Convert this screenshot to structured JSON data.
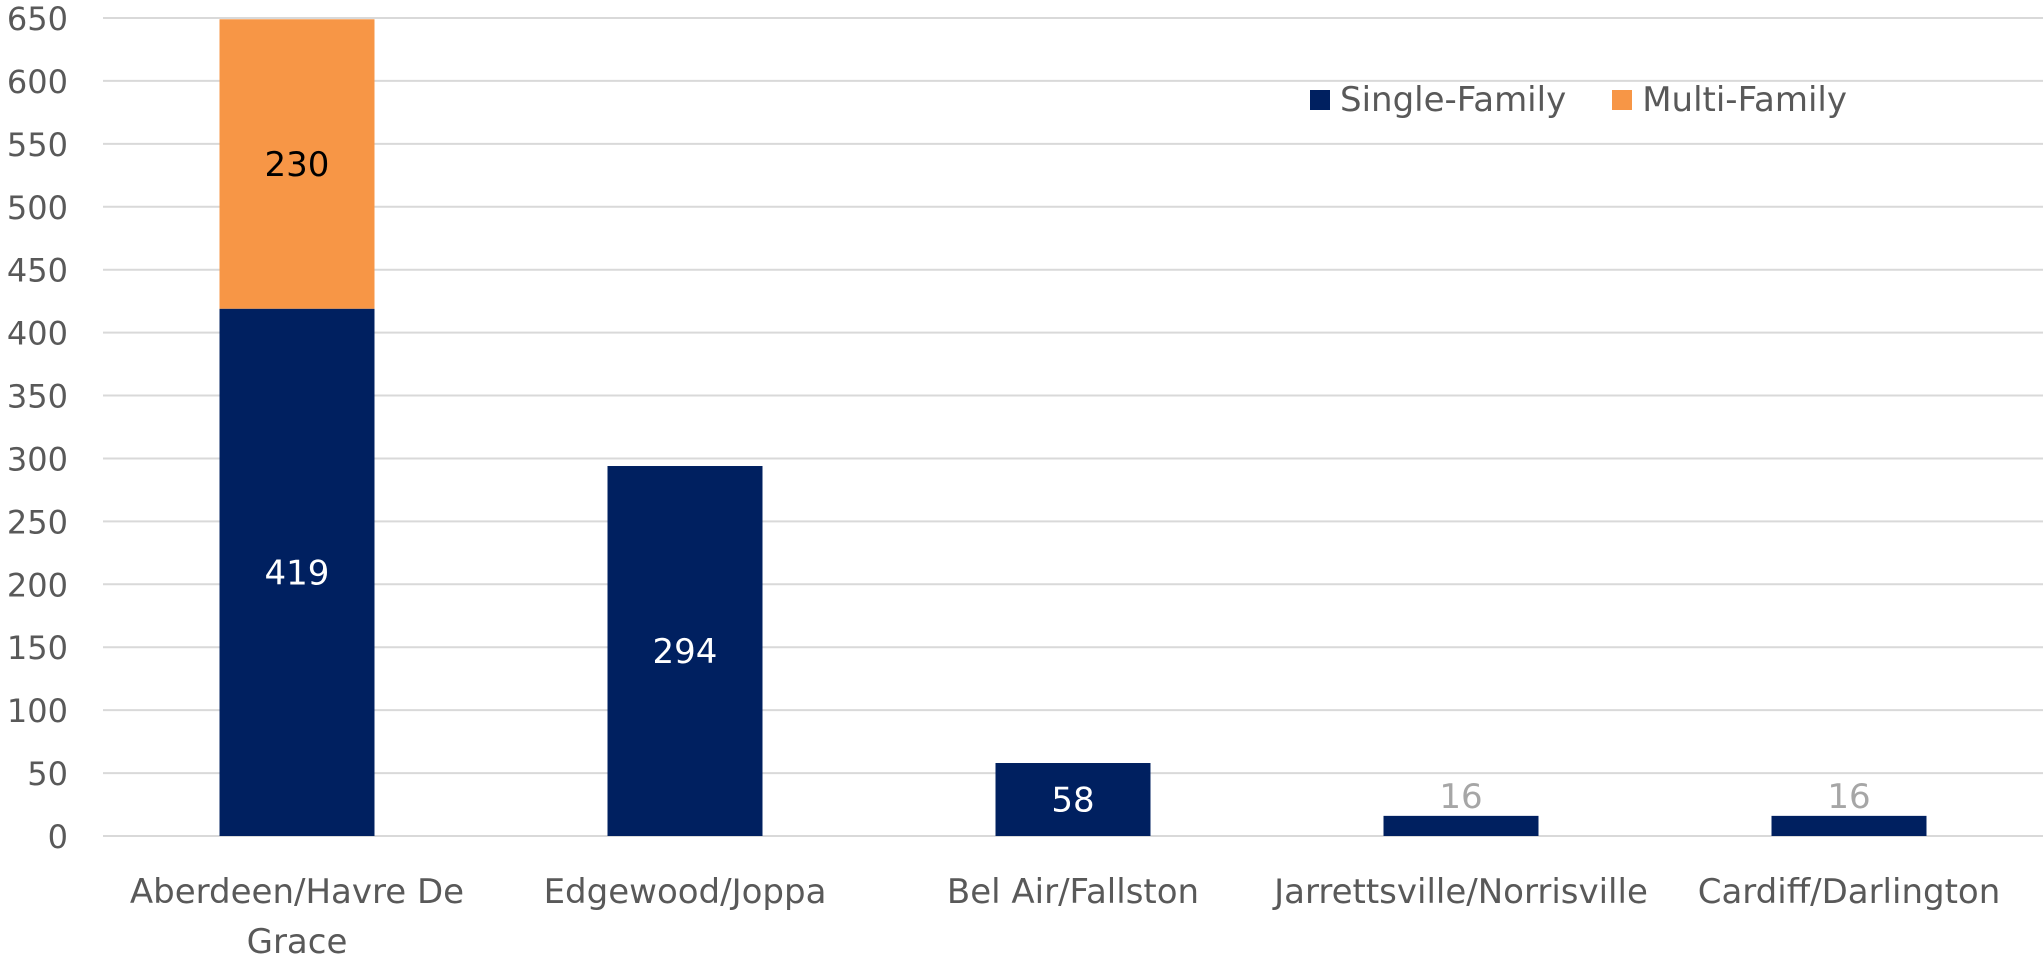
{
  "chart_data": {
    "type": "bar",
    "stacked": true,
    "categories": [
      [
        "Aberdeen/Havre De",
        "Grace"
      ],
      [
        "Edgewood/Joppa"
      ],
      [
        "Bel Air/Fallston"
      ],
      [
        "Jarrettsville/Norrisville"
      ],
      [
        "Cardiff/Darlington"
      ]
    ],
    "series": [
      {
        "name": "Single-Family",
        "color": "#002060",
        "values": [
          419,
          294,
          58,
          16,
          16
        ],
        "labels": [
          "419",
          "294",
          "58",
          "16",
          "16"
        ]
      },
      {
        "name": "Multi-Family",
        "color": "#F79646",
        "values": [
          230,
          0,
          0,
          0,
          0
        ],
        "labels": [
          "230",
          "",
          "",
          "",
          ""
        ]
      }
    ],
    "ylim": [
      0,
      650
    ],
    "yticks": [
      "0",
      "50",
      "100",
      "150",
      "200",
      "250",
      "300",
      "350",
      "400",
      "450",
      "500",
      "550",
      "600",
      "650"
    ],
    "grid": true,
    "legend_position": "top-right"
  }
}
